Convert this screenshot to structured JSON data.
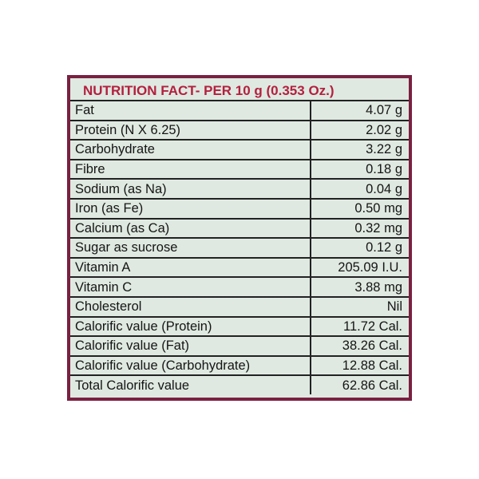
{
  "title": "NUTRITION FACT- PER 10 g (0.353 Oz.)",
  "rows": [
    {
      "label": "Fat",
      "value": "4.07 g"
    },
    {
      "label": "Protein  (N X 6.25)",
      "value": "2.02 g"
    },
    {
      "label": "Carbohydrate",
      "value": "3.22 g"
    },
    {
      "label": "Fibre",
      "value": "0.18 g"
    },
    {
      "label": "Sodium  (as Na)",
      "value": "0.04 g"
    },
    {
      "label": "Iron  (as Fe)",
      "value": "0.50 mg"
    },
    {
      "label": "Calcium  (as Ca)",
      "value": "0.32 mg"
    },
    {
      "label": "Sugar as sucrose",
      "value": "0.12 g"
    },
    {
      "label": "Vitamin A",
      "value": "205.09 I.U."
    },
    {
      "label": "Vitamin C",
      "value": "3.88 mg"
    },
    {
      "label": "Cholesterol",
      "value": "Nil"
    },
    {
      "label": "Calorific value (Protein)",
      "value": "11.72 Cal."
    },
    {
      "label": "Calorific value (Fat)",
      "value": "38.26 Cal."
    },
    {
      "label": "Calorific value (Carbohydrate)",
      "value": "12.88 Cal."
    },
    {
      "label": "Total Calorific value",
      "value": "62.86 Cal."
    }
  ],
  "colors": {
    "frame": "#7a2040",
    "title": "#b3203f",
    "panel": "#dfe9e1"
  }
}
